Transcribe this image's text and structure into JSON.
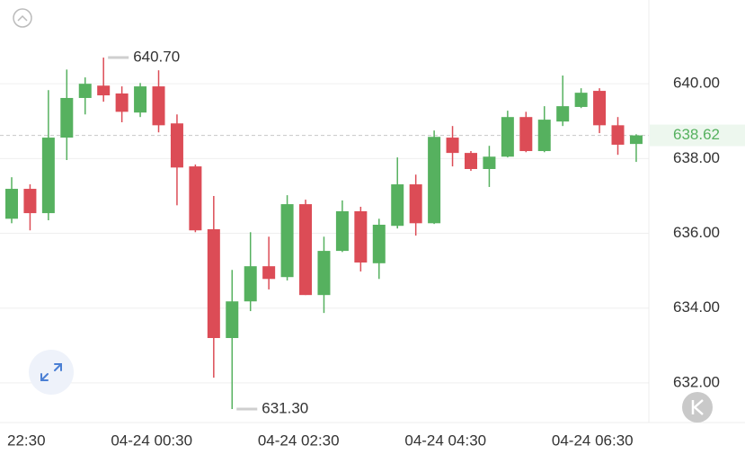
{
  "chart_data": {
    "type": "candlestick",
    "x": [
      "22:30",
      "22:45",
      "23:00",
      "23:15",
      "23:30",
      "23:45",
      "00:00",
      "00:15",
      "00:30",
      "00:45",
      "01:00",
      "01:15",
      "01:30",
      "01:45",
      "02:00",
      "02:15",
      "02:30",
      "02:45",
      "03:00",
      "03:15",
      "03:30",
      "03:45",
      "04:00",
      "04:15",
      "04:30",
      "04:45",
      "05:00",
      "05:15",
      "05:30",
      "05:45",
      "06:00",
      "06:15",
      "06:30",
      "06:45",
      "07:00",
      "07:15"
    ],
    "open": [
      null,
      636.39,
      637.19,
      636.54,
      638.56,
      639.62,
      639.95,
      639.74,
      639.23,
      639.93,
      638.94,
      637.79,
      636.11,
      633.2,
      634.18,
      635.12,
      634.83,
      636.78,
      634.35,
      635.53,
      636.59,
      635.2,
      636.2,
      637.31,
      636.27,
      638.56,
      638.15,
      637.72,
      638.05,
      639.11,
      638.2,
      638.99,
      639.38,
      639.81,
      638.89,
      638.39
    ],
    "high": [
      null,
      637.5,
      637.31,
      639.83,
      640.38,
      640.17,
      640.7,
      639.93,
      640.02,
      640.36,
      639.18,
      637.84,
      637.0,
      635.02,
      636.03,
      635.91,
      637.02,
      636.9,
      635.91,
      636.88,
      636.71,
      636.39,
      638.03,
      637.57,
      638.75,
      638.87,
      638.2,
      638.34,
      639.28,
      639.25,
      639.4,
      640.22,
      639.88,
      639.88,
      639.11,
      638.65
    ],
    "low": [
      null,
      636.27,
      636.08,
      636.35,
      637.96,
      639.18,
      639.52,
      638.97,
      639.11,
      638.7,
      636.75,
      636.03,
      632.14,
      631.3,
      633.92,
      634.5,
      634.74,
      634.35,
      633.87,
      635.5,
      634.98,
      634.78,
      636.13,
      635.94,
      636.25,
      637.79,
      637.67,
      637.24,
      638.03,
      638.17,
      638.17,
      638.87,
      639.35,
      638.68,
      638.1,
      637.91
    ],
    "close": [
      null,
      637.19,
      636.54,
      638.56,
      639.62,
      640.0,
      639.69,
      639.25,
      639.93,
      638.89,
      637.76,
      636.08,
      633.2,
      634.18,
      635.12,
      634.78,
      636.78,
      634.35,
      635.53,
      636.59,
      635.22,
      636.23,
      637.31,
      636.27,
      638.58,
      638.15,
      637.72,
      638.05,
      639.11,
      638.2,
      639.04,
      639.4,
      639.76,
      638.89,
      638.37,
      638.62
    ],
    "up_color": "#56b15f",
    "down_color": "#dc4c56",
    "ylim": [
      630.94,
      642.24
    ],
    "yticks": [
      {
        "value": 632,
        "label": "632.00"
      },
      {
        "value": 634,
        "label": "634.00"
      },
      {
        "value": 636,
        "label": "636.00"
      },
      {
        "value": 638,
        "label": "638.00"
      },
      {
        "value": 640,
        "label": "640.00"
      }
    ],
    "xticks": [
      {
        "value": "22:30",
        "label": "22:30"
      },
      {
        "value": "00:30",
        "label": "04-24 00:30"
      },
      {
        "value": "02:30",
        "label": "04-24 02:30"
      },
      {
        "value": "04:30",
        "label": "04-24 04:30"
      },
      {
        "value": "06:30",
        "label": "04-24 06:30"
      }
    ],
    "grid": true,
    "last_price": {
      "value": 638.62,
      "label": "638.62"
    },
    "annotations": [
      {
        "x": "00:00",
        "value": 640.7,
        "label": "640.70"
      },
      {
        "x": "01:45",
        "value": 631.3,
        "label": "631.30"
      }
    ]
  }
}
